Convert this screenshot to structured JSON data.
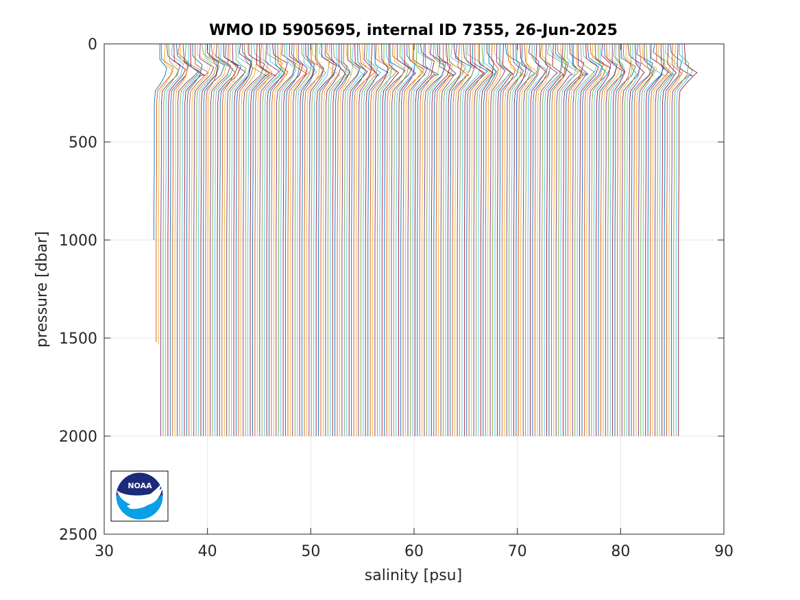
{
  "chart_data": {
    "type": "line",
    "title": "WMO ID 5905695, internal ID 7355, 26-Jun-2025",
    "xlabel": "salinity [psu]",
    "ylabel": "pressure [dbar]",
    "xlim": [
      30,
      90
    ],
    "ylim": [
      0,
      2500
    ],
    "y_reversed": true,
    "grid": true,
    "xticks": [
      30,
      40,
      50,
      60,
      70,
      80,
      90
    ],
    "yticks": [
      0,
      500,
      1000,
      1500,
      2000,
      2500
    ],
    "series_description": "profiles offset in salinity; leftmost starts near 35.5 psu at surface, rightmost near 86 psu; spacing ~0.23 psu",
    "profiles": {
      "count": 224,
      "first_surface_salinity": 35.4,
      "last_surface_salinity": 86.2,
      "max_pressure": 2000,
      "short_profiles": [
        {
          "index": 0,
          "max_pressure": 1000
        },
        {
          "index": 1,
          "max_pressure": 1520
        },
        {
          "index": 2,
          "max_pressure": 1530
        }
      ]
    },
    "colors": [
      "#0072BD",
      "#D95319",
      "#EDB120",
      "#7E2F8E",
      "#77AC30",
      "#4DBEEE",
      "#A2142F"
    ]
  },
  "logo": {
    "text": "NOAA",
    "icon": "noaa-logo-icon",
    "colors": {
      "top": "#1b2a7a",
      "bottom": "#0a9fe8"
    }
  }
}
